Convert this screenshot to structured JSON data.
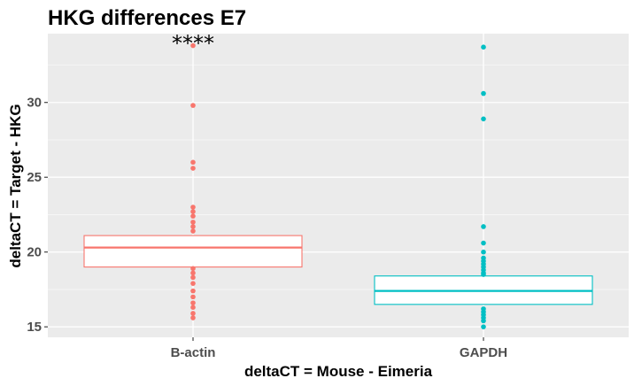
{
  "chart_data": {
    "type": "box",
    "title": "HKG differences E7",
    "xlabel": "deltaCT = Mouse - Eimeria",
    "ylabel": "deltaCT = Target - HKG",
    "categories": [
      "B-actin",
      "GAPDH"
    ],
    "ylim": [
      14.3,
      34.6
    ],
    "yticks": [
      "15",
      "20",
      "25",
      "30"
    ],
    "grid": true,
    "legend": "none",
    "series": [
      {
        "category": "B-actin",
        "color": "#F8766D",
        "q1": 19.0,
        "median": 20.3,
        "q3": 21.1,
        "outliers": [
          33.8,
          29.8,
          26.0,
          25.6,
          23.0,
          22.7,
          22.4,
          22.0,
          21.7,
          21.4,
          18.9,
          18.6,
          18.3,
          17.9,
          17.4,
          17.0,
          16.6,
          16.3,
          15.9,
          15.6
        ]
      },
      {
        "category": "GAPDH",
        "color": "#00BFC4",
        "q1": 16.5,
        "median": 17.4,
        "q3": 18.4,
        "outliers": [
          33.7,
          30.6,
          28.9,
          21.7,
          20.6,
          20.0,
          19.6,
          19.4,
          19.2,
          19.0,
          18.8,
          18.6,
          18.5,
          16.2,
          16.0,
          15.8,
          15.6,
          15.4,
          15.0
        ]
      }
    ],
    "annotations": [
      {
        "text": "****",
        "category": "B-actin",
        "y": 34.0
      }
    ]
  }
}
